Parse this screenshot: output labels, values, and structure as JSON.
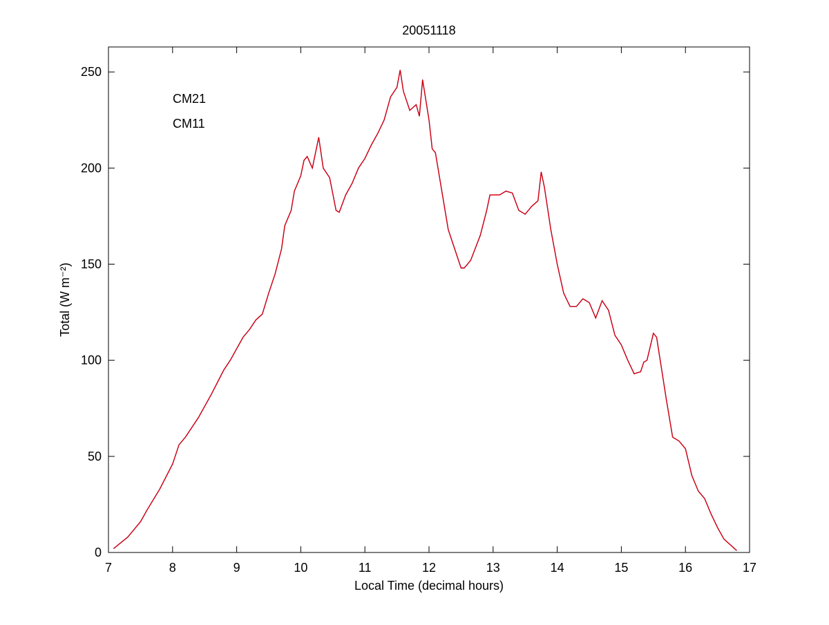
{
  "chart_data": {
    "type": "line",
    "title": "20051118",
    "xlabel": "Local Time (decimal hours)",
    "ylabel": "Total (W m⁻²)",
    "xlim": [
      7,
      17
    ],
    "xticks": [
      7,
      8,
      9,
      10,
      11,
      12,
      13,
      14,
      15,
      16,
      17
    ],
    "ylim": [
      0,
      263
    ],
    "yticks": [
      0,
      50,
      100,
      150,
      200,
      250
    ],
    "legend": "upper left",
    "x": [
      7.08,
      7.3,
      7.5,
      7.6,
      7.8,
      8.0,
      8.1,
      8.2,
      8.4,
      8.6,
      8.8,
      8.9,
      9.0,
      9.1,
      9.2,
      9.3,
      9.4,
      9.5,
      9.6,
      9.7,
      9.75,
      9.85,
      9.9,
      10.0,
      10.05,
      10.1,
      10.18,
      10.28,
      10.35,
      10.45,
      10.55,
      10.6,
      10.7,
      10.8,
      10.9,
      11.0,
      11.1,
      11.2,
      11.3,
      11.4,
      11.5,
      11.55,
      11.6,
      11.7,
      11.8,
      11.85,
      11.9,
      12.0,
      12.05,
      12.1,
      12.2,
      12.3,
      12.4,
      12.5,
      12.55,
      12.65,
      12.8,
      12.9,
      12.95,
      13.0,
      13.1,
      13.2,
      13.3,
      13.4,
      13.5,
      13.6,
      13.7,
      13.75,
      13.8,
      13.9,
      14.0,
      14.1,
      14.2,
      14.3,
      14.4,
      14.5,
      14.6,
      14.7,
      14.8,
      14.9,
      15.0,
      15.1,
      15.2,
      15.3,
      15.35,
      15.4,
      15.5,
      15.55,
      15.7,
      15.8,
      15.9,
      16.0,
      16.1,
      16.2,
      16.3,
      16.4,
      16.5,
      16.6,
      16.7,
      16.8
    ],
    "series": [
      {
        "name": "CM21",
        "color": "#0000c0",
        "values": [
          2,
          8,
          16,
          22,
          33,
          46,
          56,
          60,
          70,
          82,
          95,
          100,
          106,
          112,
          116,
          121,
          124,
          135,
          145,
          158,
          170,
          178,
          188,
          196,
          204,
          206,
          200,
          216,
          200,
          195,
          178,
          177,
          186,
          192,
          200,
          205,
          212,
          218,
          225,
          237,
          242,
          251,
          240,
          230,
          233,
          227,
          246,
          225,
          210,
          208,
          188,
          168,
          158,
          148,
          148,
          152,
          165,
          178,
          186,
          186,
          186,
          188,
          187,
          178,
          176,
          180,
          183,
          198,
          190,
          168,
          150,
          135,
          128,
          128,
          132,
          130,
          122,
          131,
          126,
          113,
          108,
          100,
          93,
          94,
          99,
          100,
          114,
          112,
          80,
          60,
          58,
          54,
          40,
          32,
          28,
          20,
          13,
          7,
          4,
          1
        ]
      },
      {
        "name": "CM11",
        "color": "#e00000",
        "values": [
          2,
          8,
          16,
          22,
          33,
          46,
          56,
          60,
          70,
          82,
          95,
          100,
          106,
          112,
          116,
          121,
          124,
          135,
          145,
          158,
          170,
          178,
          188,
          196,
          204,
          206,
          200,
          216,
          200,
          195,
          178,
          177,
          186,
          192,
          200,
          205,
          212,
          218,
          225,
          237,
          242,
          251,
          240,
          230,
          233,
          227,
          246,
          225,
          210,
          208,
          188,
          168,
          158,
          148,
          148,
          152,
          165,
          178,
          186,
          186,
          186,
          188,
          187,
          178,
          176,
          180,
          183,
          198,
          190,
          168,
          150,
          135,
          128,
          128,
          132,
          130,
          122,
          131,
          126,
          113,
          108,
          100,
          93,
          94,
          99,
          100,
          114,
          112,
          80,
          60,
          58,
          54,
          40,
          32,
          28,
          20,
          13,
          7,
          4,
          1
        ]
      }
    ]
  }
}
